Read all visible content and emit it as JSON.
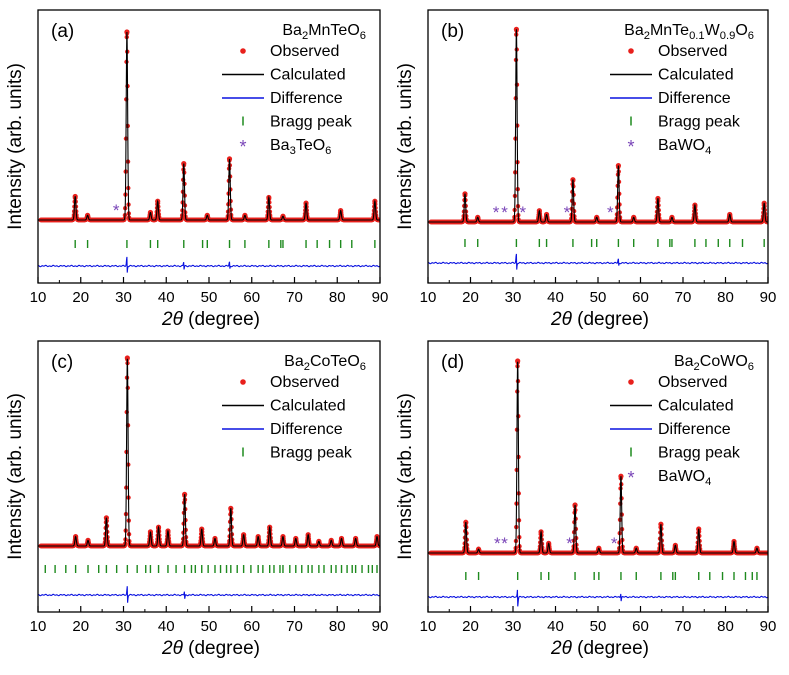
{
  "colors": {
    "observed": "#e8201c",
    "calculated": "#000000",
    "difference": "#0a12e0",
    "bragg": "#1e8a1e",
    "impurity": "#7a46b8"
  },
  "chart_data": [
    {
      "id": "a",
      "type": "line",
      "panel_label": "(a)",
      "compound": {
        "parts": [
          {
            "t": "Ba"
          },
          {
            "t": "2",
            "sub": true
          },
          {
            "t": "MnTeO"
          },
          {
            "t": "6",
            "sub": true
          }
        ]
      },
      "xlabel": {
        "theta": "2θ",
        "rest": "(degree)"
      },
      "ylabel": "Intensity (arb. units)",
      "xlim": [
        10,
        90
      ],
      "xticks": [
        "10",
        "20",
        "30",
        "40",
        "50",
        "60",
        "70",
        "80",
        "90"
      ],
      "background": 0.2,
      "peaks": [
        {
          "x": 18.7,
          "h": 0.25
        },
        {
          "x": 21.6,
          "h": 0.05
        },
        {
          "x": 30.8,
          "h": 2.0
        },
        {
          "x": 36.3,
          "h": 0.08
        },
        {
          "x": 38.0,
          "h": 0.2
        },
        {
          "x": 44.1,
          "h": 0.6
        },
        {
          "x": 49.6,
          "h": 0.05
        },
        {
          "x": 54.8,
          "h": 0.65
        },
        {
          "x": 58.4,
          "h": 0.05
        },
        {
          "x": 64.0,
          "h": 0.24
        },
        {
          "x": 67.3,
          "h": 0.04
        },
        {
          "x": 72.7,
          "h": 0.18
        },
        {
          "x": 80.8,
          "h": 0.1
        },
        {
          "x": 88.8,
          "h": 0.2
        }
      ],
      "bragg_positions": [
        18.7,
        21.6,
        30.8,
        36.3,
        38.0,
        44.1,
        48.5,
        49.6,
        54.8,
        58.4,
        64.0,
        66.8,
        67.3,
        72.7,
        75.3,
        78.2,
        80.8,
        83.4,
        88.8
      ],
      "impurity_markers": [
        28.3
      ],
      "legend": [
        {
          "kind": "observed",
          "label": "Observed"
        },
        {
          "kind": "calculated",
          "label": "Calculated"
        },
        {
          "kind": "difference",
          "label": "Difference"
        },
        {
          "kind": "bragg",
          "label": "Bragg peak"
        },
        {
          "kind": "impurity",
          "label": {
            "parts": [
              {
                "t": "Ba"
              },
              {
                "t": "3",
                "sub": true
              },
              {
                "t": "TeO"
              },
              {
                "t": "6",
                "sub": true
              }
            ]
          }
        }
      ]
    },
    {
      "id": "b",
      "type": "line",
      "panel_label": "(b)",
      "compound": {
        "parts": [
          {
            "t": "Ba"
          },
          {
            "t": "2",
            "sub": true
          },
          {
            "t": "MnTe"
          },
          {
            "t": "0.1",
            "sub": true
          },
          {
            "t": "W"
          },
          {
            "t": "0.9",
            "sub": true
          },
          {
            "t": "O"
          },
          {
            "t": "6",
            "sub": true
          }
        ]
      },
      "xlabel": {
        "theta": "2θ",
        "rest": "(degree)"
      },
      "ylabel": "Intensity (arb. units)",
      "xlim": [
        10,
        90
      ],
      "xticks": [
        "10",
        "20",
        "30",
        "40",
        "50",
        "60",
        "70",
        "80",
        "90"
      ],
      "background": 0.2,
      "peaks": [
        {
          "x": 18.7,
          "h": 0.3
        },
        {
          "x": 21.7,
          "h": 0.05
        },
        {
          "x": 30.8,
          "h": 2.05
        },
        {
          "x": 36.2,
          "h": 0.12
        },
        {
          "x": 37.9,
          "h": 0.08
        },
        {
          "x": 44.1,
          "h": 0.45
        },
        {
          "x": 49.7,
          "h": 0.05
        },
        {
          "x": 54.8,
          "h": 0.6
        },
        {
          "x": 58.4,
          "h": 0.05
        },
        {
          "x": 64.1,
          "h": 0.25
        },
        {
          "x": 67.4,
          "h": 0.05
        },
        {
          "x": 72.8,
          "h": 0.18
        },
        {
          "x": 81.0,
          "h": 0.08
        },
        {
          "x": 89.1,
          "h": 0.2
        }
      ],
      "bragg_positions": [
        18.7,
        21.7,
        30.8,
        36.2,
        37.9,
        44.1,
        48.5,
        49.7,
        54.8,
        58.4,
        64.1,
        66.9,
        67.4,
        72.8,
        75.4,
        78.3,
        81.0,
        84.0,
        89.1
      ],
      "impurity_markers": [
        26.0,
        28.0,
        32.3,
        42.7,
        52.9
      ],
      "legend": [
        {
          "kind": "observed",
          "label": "Observed"
        },
        {
          "kind": "calculated",
          "label": "Calculated"
        },
        {
          "kind": "difference",
          "label": "Difference"
        },
        {
          "kind": "bragg",
          "label": "Bragg peak"
        },
        {
          "kind": "impurity",
          "label": {
            "parts": [
              {
                "t": "BaWO"
              },
              {
                "t": "4",
                "sub": true
              }
            ]
          }
        }
      ]
    },
    {
      "id": "c",
      "type": "line",
      "panel_label": "(c)",
      "compound": {
        "parts": [
          {
            "t": "Ba"
          },
          {
            "t": "2",
            "sub": true
          },
          {
            "t": "CoTeO"
          },
          {
            "t": "6",
            "sub": true
          }
        ]
      },
      "xlabel": {
        "theta": "2θ",
        "rest": "(degree)"
      },
      "ylabel": "Intensity (arb. units)",
      "xlim": [
        10,
        90
      ],
      "xticks": [
        "10",
        "20",
        "30",
        "40",
        "50",
        "60",
        "70",
        "80",
        "90"
      ],
      "background": 0.2,
      "peaks": [
        {
          "x": 18.8,
          "h": 0.1
        },
        {
          "x": 21.7,
          "h": 0.06
        },
        {
          "x": 26.0,
          "h": 0.3
        },
        {
          "x": 30.9,
          "h": 2.0
        },
        {
          "x": 36.3,
          "h": 0.15
        },
        {
          "x": 38.2,
          "h": 0.2
        },
        {
          "x": 40.4,
          "h": 0.16
        },
        {
          "x": 44.3,
          "h": 0.55
        },
        {
          "x": 48.3,
          "h": 0.18
        },
        {
          "x": 51.4,
          "h": 0.08
        },
        {
          "x": 55.1,
          "h": 0.4
        },
        {
          "x": 58.1,
          "h": 0.12
        },
        {
          "x": 61.5,
          "h": 0.1
        },
        {
          "x": 64.2,
          "h": 0.2
        },
        {
          "x": 67.3,
          "h": 0.1
        },
        {
          "x": 70.3,
          "h": 0.08
        },
        {
          "x": 73.2,
          "h": 0.12
        },
        {
          "x": 75.7,
          "h": 0.05
        },
        {
          "x": 78.6,
          "h": 0.06
        },
        {
          "x": 81.0,
          "h": 0.08
        },
        {
          "x": 84.3,
          "h": 0.08
        },
        {
          "x": 89.3,
          "h": 0.1
        }
      ],
      "bragg_positions": [
        11.7,
        14.0,
        16.5,
        18.8,
        21.7,
        24.2,
        26.0,
        28.4,
        30.9,
        33.2,
        35.2,
        36.3,
        38.2,
        40.4,
        42.3,
        44.3,
        45.9,
        46.8,
        48.3,
        49.8,
        51.4,
        52.7,
        54.1,
        55.1,
        56.6,
        58.1,
        59.8,
        61.5,
        62.6,
        64.2,
        65.2,
        66.6,
        67.3,
        68.9,
        70.3,
        71.7,
        73.2,
        74.1,
        75.7,
        76.9,
        78.6,
        79.7,
        81.0,
        82.3,
        83.5,
        84.3,
        85.8,
        87.3,
        88.2,
        89.3
      ],
      "impurity_markers": [],
      "legend": [
        {
          "kind": "observed",
          "label": "Observed"
        },
        {
          "kind": "calculated",
          "label": "Calculated"
        },
        {
          "kind": "difference",
          "label": "Difference"
        },
        {
          "kind": "bragg",
          "label": "Bragg peak"
        }
      ]
    },
    {
      "id": "d",
      "type": "line",
      "panel_label": "(d)",
      "compound": {
        "parts": [
          {
            "t": "Ba"
          },
          {
            "t": "2",
            "sub": true
          },
          {
            "t": "CoWO"
          },
          {
            "t": "6",
            "sub": true
          }
        ]
      },
      "xlabel": {
        "theta": "2θ",
        "rest": "(degree)"
      },
      "ylabel": "Intensity (arb. units)",
      "xlim": [
        10,
        90
      ],
      "xticks": [
        "10",
        "20",
        "30",
        "40",
        "50",
        "60",
        "70",
        "80",
        "90"
      ],
      "background": 0.2,
      "peaks": [
        {
          "x": 18.9,
          "h": 0.32
        },
        {
          "x": 21.9,
          "h": 0.04
        },
        {
          "x": 31.1,
          "h": 2.0
        },
        {
          "x": 36.6,
          "h": 0.22
        },
        {
          "x": 38.4,
          "h": 0.1
        },
        {
          "x": 44.6,
          "h": 0.5
        },
        {
          "x": 50.2,
          "h": 0.05
        },
        {
          "x": 55.4,
          "h": 0.8
        },
        {
          "x": 59.0,
          "h": 0.05
        },
        {
          "x": 64.8,
          "h": 0.3
        },
        {
          "x": 68.2,
          "h": 0.08
        },
        {
          "x": 73.7,
          "h": 0.25
        },
        {
          "x": 82.0,
          "h": 0.12
        },
        {
          "x": 87.4,
          "h": 0.05
        }
      ],
      "bragg_positions": [
        18.9,
        21.9,
        31.1,
        36.6,
        38.4,
        44.6,
        49.1,
        50.2,
        55.4,
        59.0,
        64.8,
        67.6,
        68.2,
        73.7,
        76.3,
        79.3,
        82.0,
        84.7,
        86.3,
        87.4
      ],
      "impurity_markers": [
        26.3,
        28.0,
        43.3,
        53.8
      ],
      "legend": [
        {
          "kind": "observed",
          "label": "Observed"
        },
        {
          "kind": "calculated",
          "label": "Calculated"
        },
        {
          "kind": "difference",
          "label": "Difference"
        },
        {
          "kind": "bragg",
          "label": "Bragg peak"
        },
        {
          "kind": "impurity",
          "label": {
            "parts": [
              {
                "t": "BaWO"
              },
              {
                "t": "4",
                "sub": true
              }
            ]
          }
        }
      ]
    }
  ]
}
